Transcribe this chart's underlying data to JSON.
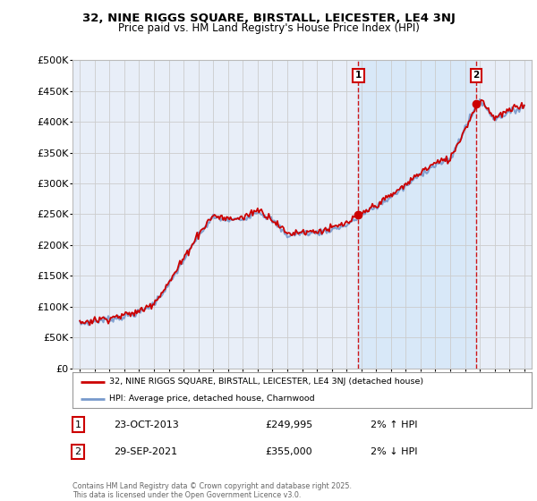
{
  "title_line1": "32, NINE RIGGS SQUARE, BIRSTALL, LEICESTER, LE4 3NJ",
  "title_line2": "Price paid vs. HM Land Registry's House Price Index (HPI)",
  "background_color": "#ffffff",
  "plot_bg_color": "#e8eef8",
  "grid_color": "#cccccc",
  "hpi_color": "#7799cc",
  "price_color": "#cc0000",
  "shade_color": "#d8e8f8",
  "marker1_year": 2013.8,
  "marker2_year": 2021.75,
  "legend_entry1": "32, NINE RIGGS SQUARE, BIRSTALL, LEICESTER, LE4 3NJ (detached house)",
  "legend_entry2": "HPI: Average price, detached house, Charnwood",
  "note1_num": "1",
  "note1_date": "23-OCT-2013",
  "note1_price": "£249,995",
  "note1_hpi": "2% ↑ HPI",
  "note2_num": "2",
  "note2_date": "29-SEP-2021",
  "note2_price": "£355,000",
  "note2_hpi": "2% ↓ HPI",
  "footer": "Contains HM Land Registry data © Crown copyright and database right 2025.\nThis data is licensed under the Open Government Licence v3.0.",
  "ylim_min": 0,
  "ylim_max": 500000,
  "xmin": 1994.5,
  "xmax": 2025.5,
  "hpi_anchors_years": [
    1995,
    1996,
    1997,
    1998,
    1999,
    2000,
    2001,
    2002,
    2003,
    2004,
    2005,
    2006,
    2007,
    2008,
    2009,
    2010,
    2011,
    2012,
    2013,
    2014,
    2015,
    2016,
    2017,
    2018,
    2019,
    2020,
    2021,
    2022,
    2023,
    2024,
    2025
  ],
  "hpi_anchors_vals": [
    72000,
    76000,
    80000,
    84000,
    90000,
    105000,
    135000,
    175000,
    215000,
    245000,
    240000,
    242000,
    255000,
    240000,
    215000,
    220000,
    220000,
    225000,
    232000,
    248000,
    262000,
    278000,
    295000,
    315000,
    330000,
    338000,
    390000,
    435000,
    405000,
    415000,
    425000
  ],
  "price_anchors_years": [
    1995,
    1996,
    1997,
    1998,
    1999,
    2000,
    2001,
    2002,
    2003,
    2004,
    2005,
    2006,
    2007,
    2008,
    2009,
    2010,
    2011,
    2012,
    2013,
    2014,
    2015,
    2016,
    2017,
    2018,
    2019,
    2020,
    2021,
    2022,
    2023,
    2024,
    2025
  ],
  "price_anchors_vals": [
    74000,
    78000,
    82000,
    86000,
    92000,
    107000,
    138000,
    178000,
    218000,
    248000,
    242000,
    244000,
    258000,
    242000,
    218000,
    222000,
    222000,
    227000,
    235000,
    250000,
    265000,
    280000,
    298000,
    318000,
    333000,
    340000,
    388000,
    438000,
    407000,
    418000,
    428000
  ]
}
